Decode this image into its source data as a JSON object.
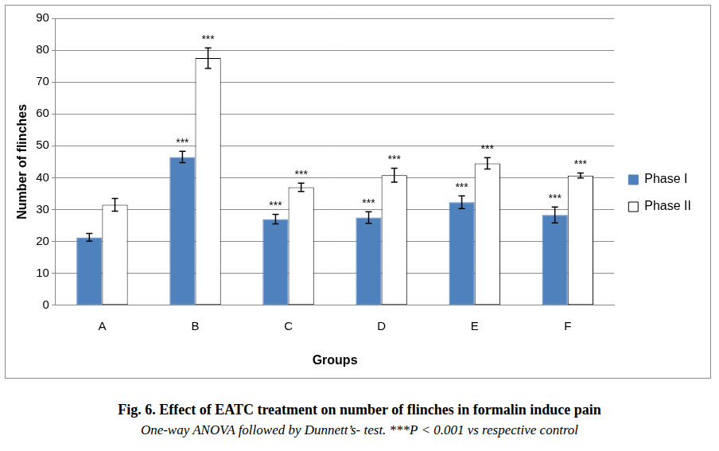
{
  "chart_data": {
    "type": "bar",
    "title": "Fig. 6. Effect of EATC treatment on number of flinches in formalin induce pain",
    "subtitle": "One-way ANOVA followed by Dunnett’s- test. ***P < 0.001 vs respective control",
    "x_label": "Groups",
    "y_label": "Number of flinches",
    "categories": [
      "A",
      "B",
      "C",
      "D",
      "E",
      "F"
    ],
    "series": [
      {
        "name": "Phase I",
        "color": "#4f81bd",
        "values": [
          21.3,
          46.5,
          27.0,
          27.5,
          32.3,
          28.3
        ],
        "errors": [
          1.2,
          1.8,
          1.5,
          1.8,
          2.0,
          2.5
        ],
        "annotations": [
          null,
          "***",
          "***",
          "***",
          "***",
          "***"
        ]
      },
      {
        "name": "Phase II",
        "color": "#ffffff",
        "values": [
          31.5,
          77.5,
          37.0,
          40.8,
          44.5,
          40.7
        ],
        "errors": [
          2.0,
          3.2,
          1.3,
          2.2,
          1.8,
          0.8
        ],
        "annotations": [
          null,
          "***",
          "***",
          "***",
          "***",
          "***"
        ]
      }
    ],
    "ylim": [
      0,
      90
    ],
    "yticks": [
      0,
      10,
      20,
      30,
      40,
      50,
      60,
      70,
      80,
      90
    ],
    "grid": true,
    "legend": "right"
  }
}
